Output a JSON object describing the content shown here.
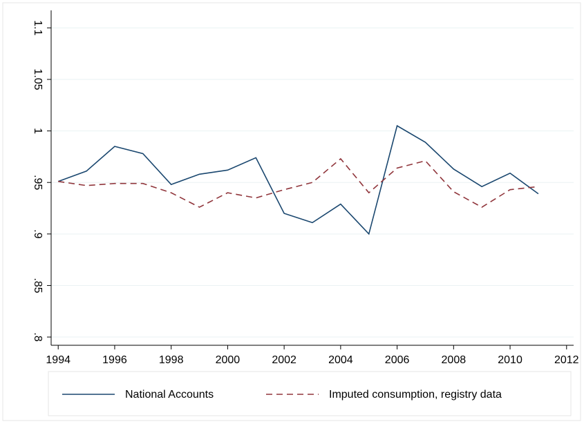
{
  "chart_data": {
    "type": "line",
    "x": [
      1994,
      1995,
      1996,
      1997,
      1998,
      1999,
      2000,
      2001,
      2002,
      2003,
      2004,
      2005,
      2006,
      2007,
      2008,
      2009,
      2010,
      2011
    ],
    "series": [
      {
        "name": "National Accounts",
        "color": "#1a476f",
        "dash": false,
        "values": [
          0.951,
          0.961,
          0.985,
          0.978,
          0.948,
          0.958,
          0.962,
          0.974,
          0.92,
          0.911,
          0.929,
          0.9,
          1.005,
          0.989,
          0.963,
          0.946,
          0.959,
          0.939
        ]
      },
      {
        "name": "Imputed consumption, registry data",
        "color": "#90353b",
        "dash": true,
        "values": [
          0.951,
          0.947,
          0.949,
          0.949,
          0.94,
          0.926,
          0.94,
          0.935,
          0.943,
          0.95,
          0.973,
          0.94,
          0.964,
          0.971,
          0.941,
          0.926,
          0.943,
          0.946
        ]
      }
    ],
    "xlim": [
      1993.75,
      2012.25
    ],
    "xticks": [
      1994,
      1996,
      1998,
      2000,
      2002,
      2004,
      2006,
      2008,
      2010,
      2012
    ],
    "ylim": [
      0.792,
      1.117
    ],
    "yticks": [
      {
        "value": 0.8,
        "label": ".8"
      },
      {
        "value": 0.85,
        "label": ".85"
      },
      {
        "value": 0.9,
        "label": ".9"
      },
      {
        "value": 0.95,
        "label": ".95"
      },
      1,
      1.05,
      1.1
    ],
    "grid": true
  }
}
